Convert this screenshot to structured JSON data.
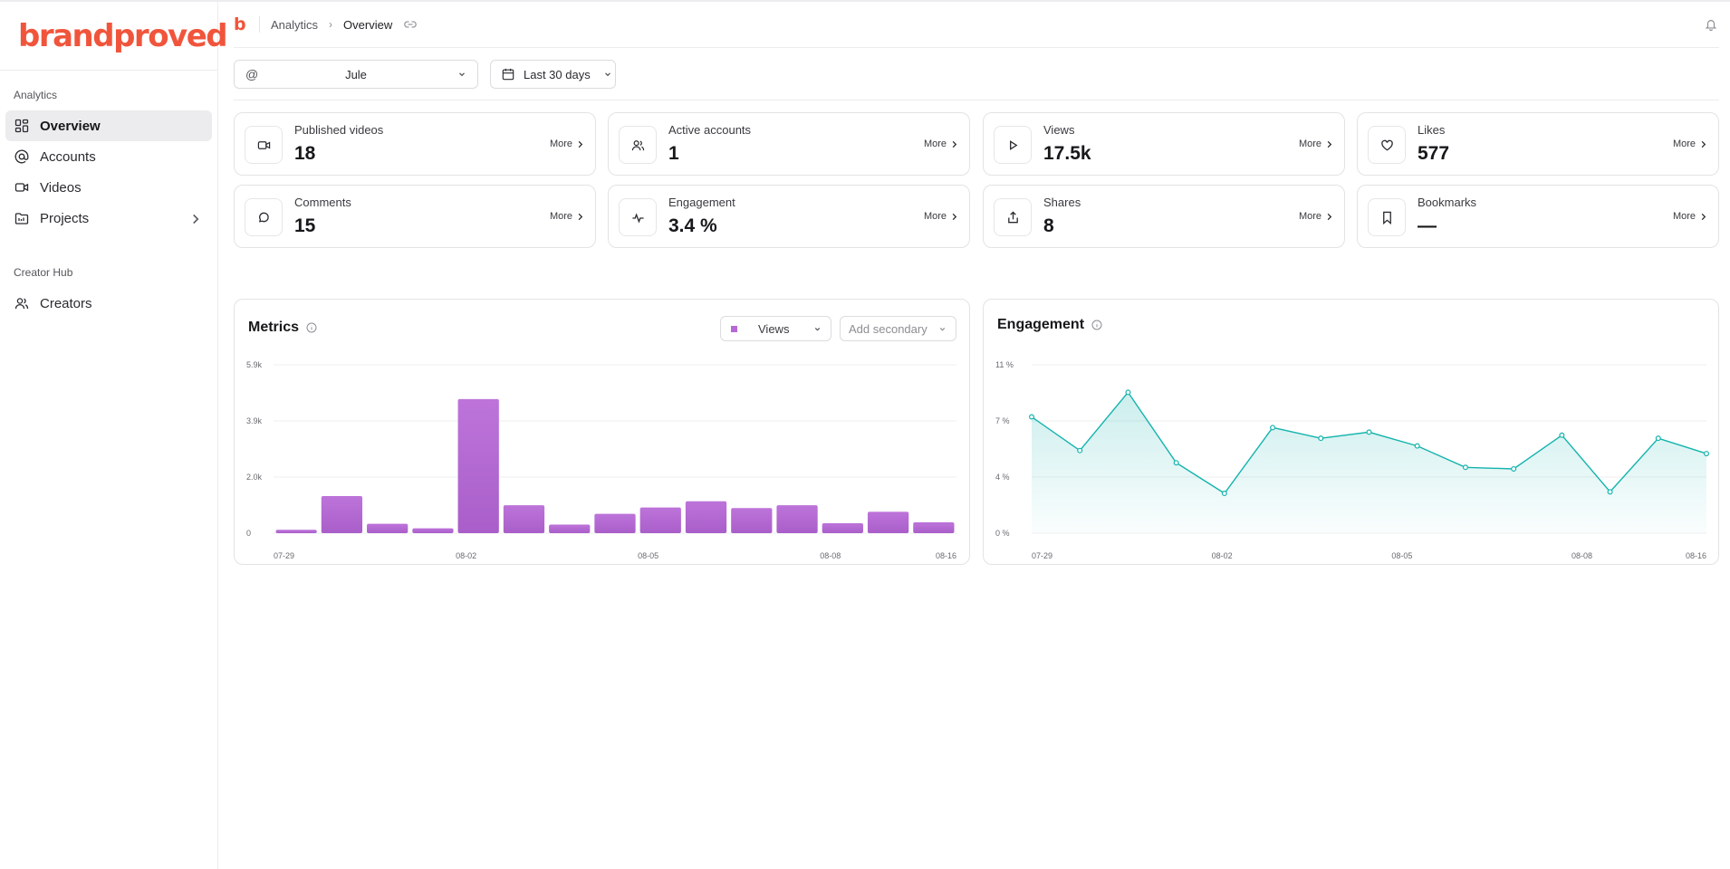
{
  "brand": {
    "name": "brandproved",
    "mini": "b"
  },
  "sidebar": {
    "sections": [
      {
        "label": "Analytics",
        "items": [
          {
            "label": "Overview",
            "active": true,
            "icon": "grid-icon"
          },
          {
            "label": "Accounts",
            "icon": "at-icon"
          },
          {
            "label": "Videos",
            "icon": "video-icon"
          },
          {
            "label": "Projects",
            "icon": "folder-icon",
            "has_chevron": true
          }
        ]
      },
      {
        "label": "Creator Hub",
        "items": [
          {
            "label": "Creators",
            "icon": "users-icon"
          }
        ]
      }
    ]
  },
  "header": {
    "breadcrumb": [
      "Analytics",
      "Overview"
    ]
  },
  "filters": {
    "account_prefix": "@",
    "account": "Jule",
    "date_range": "Last 30 days"
  },
  "stats": {
    "more_label": "More",
    "cards": [
      {
        "label": "Published videos",
        "value": "18",
        "icon": "video-icon"
      },
      {
        "label": "Active accounts",
        "value": "1",
        "icon": "users-icon"
      },
      {
        "label": "Views",
        "value": "17.5k",
        "icon": "play-icon"
      },
      {
        "label": "Likes",
        "value": "577",
        "icon": "heart-icon"
      },
      {
        "label": "Comments",
        "value": "15",
        "icon": "comment-icon"
      },
      {
        "label": "Engagement",
        "value": "3.4 %",
        "icon": "activity-icon"
      },
      {
        "label": "Shares",
        "value": "8",
        "icon": "share-icon"
      },
      {
        "label": "Bookmarks",
        "value": "—",
        "icon": "bookmark-icon"
      }
    ]
  },
  "metrics_panel": {
    "title": "Metrics",
    "primary_select": "Views",
    "secondary_select": "Add secondary"
  },
  "engagement_panel": {
    "title": "Engagement"
  },
  "chart_data": [
    {
      "type": "bar",
      "series_name": "Views",
      "color": "#b768d6",
      "y_ticks": [
        "0",
        "2.0k",
        "3.9k",
        "5.9k"
      ],
      "y_tick_values": [
        0,
        1966,
        3933,
        5900
      ],
      "ylim": [
        0,
        5900
      ],
      "x_tick_labels": [
        "07-29",
        "08-02",
        "08-05",
        "08-08",
        "08-16"
      ],
      "values": [
        120,
        1300,
        330,
        170,
        4700,
        980,
        300,
        680,
        900,
        1120,
        880,
        980,
        350,
        750,
        380
      ],
      "grid": true
    },
    {
      "type": "area",
      "color": "#14b3ad",
      "y_ticks": [
        "0 %",
        "4 %",
        "7 %",
        "11 %"
      ],
      "y_tick_values": [
        0,
        3.67,
        7.33,
        11
      ],
      "ylim": [
        0,
        11
      ],
      "x_tick_labels": [
        "07-29",
        "08-02",
        "08-05",
        "08-08",
        "08-16"
      ],
      "values": [
        7.6,
        5.4,
        9.2,
        4.6,
        2.6,
        6.9,
        6.2,
        6.6,
        5.7,
        4.3,
        4.2,
        6.4,
        2.7,
        6.2,
        5.2
      ],
      "grid": true
    }
  ],
  "icons": {
    "breadcrumb_link": "link-icon",
    "bell": "bell-icon",
    "calendar": "calendar-icon",
    "info": "info-icon"
  }
}
